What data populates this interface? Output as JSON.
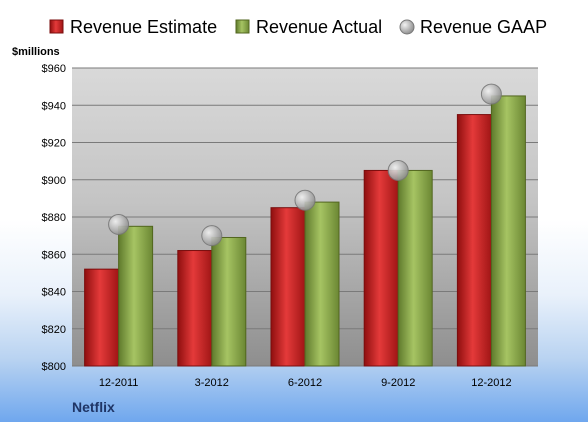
{
  "chart_data": {
    "type": "bar",
    "units_label": "$millions",
    "company": "Netflix",
    "categories": [
      "12-2011",
      "3-2012",
      "6-2012",
      "9-2012",
      "12-2012"
    ],
    "series": [
      {
        "name": "Revenue Estimate",
        "kind": "bar",
        "color": "#cc1f1f",
        "values": [
          852,
          862,
          885,
          905,
          935
        ]
      },
      {
        "name": "Revenue Actual",
        "kind": "bar",
        "color": "#8aa84c",
        "values": [
          875,
          869,
          888,
          905,
          945
        ]
      },
      {
        "name": "Revenue GAAP",
        "kind": "marker",
        "color": "#b8b8b8",
        "values": [
          876,
          870,
          889,
          905,
          946
        ]
      }
    ],
    "ylim": [
      800,
      960
    ],
    "yticks": [
      800,
      820,
      840,
      860,
      880,
      900,
      920,
      940,
      960
    ],
    "ytick_format": "$",
    "grid": true,
    "legend": "top"
  }
}
